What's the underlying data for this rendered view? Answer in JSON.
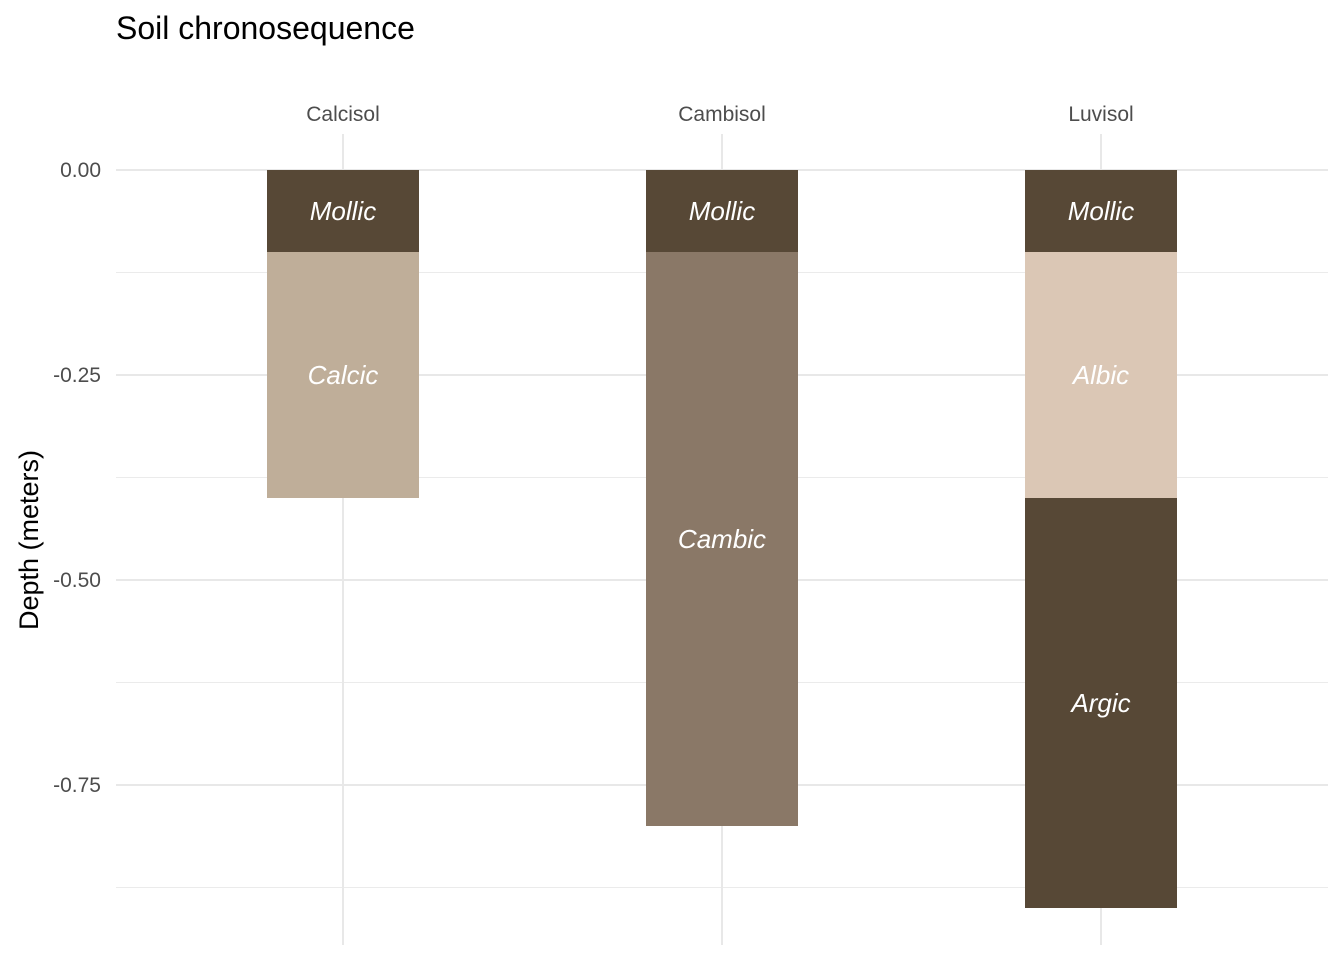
{
  "chart_data": {
    "type": "bar",
    "subtype": "stacked-depth-profile",
    "title": "Soil chronosequence",
    "xlabel": "",
    "ylabel": "Depth (meters)",
    "categories": [
      "Calcisol",
      "Cambisol",
      "Luvisol"
    ],
    "y_ticks": [
      0.0,
      -0.25,
      -0.5,
      -0.75
    ],
    "y_tick_labels": [
      "0.00",
      "-0.25",
      "-0.50",
      "-0.75"
    ],
    "ylim": [
      -0.9,
      0.0
    ],
    "x_axis_position": "top",
    "grid": true,
    "legend": "none",
    "profiles": [
      {
        "category": "Calcisol",
        "layers": [
          {
            "label": "Mollic",
            "top": 0.0,
            "bottom": -0.1,
            "color": "#574836"
          },
          {
            "label": "Calcic",
            "top": -0.1,
            "bottom": -0.4,
            "color": "#bfae99"
          }
        ]
      },
      {
        "category": "Cambisol",
        "layers": [
          {
            "label": "Mollic",
            "top": 0.0,
            "bottom": -0.1,
            "color": "#574836"
          },
          {
            "label": "Cambic",
            "top": -0.1,
            "bottom": -0.8,
            "color": "#8a7867"
          }
        ]
      },
      {
        "category": "Luvisol",
        "layers": [
          {
            "label": "Mollic",
            "top": 0.0,
            "bottom": -0.1,
            "color": "#574836"
          },
          {
            "label": "Albic",
            "top": -0.1,
            "bottom": -0.4,
            "color": "#dbc7b5"
          },
          {
            "label": "Argic",
            "top": -0.4,
            "bottom": -0.9,
            "color": "#574836"
          }
        ]
      }
    ]
  }
}
